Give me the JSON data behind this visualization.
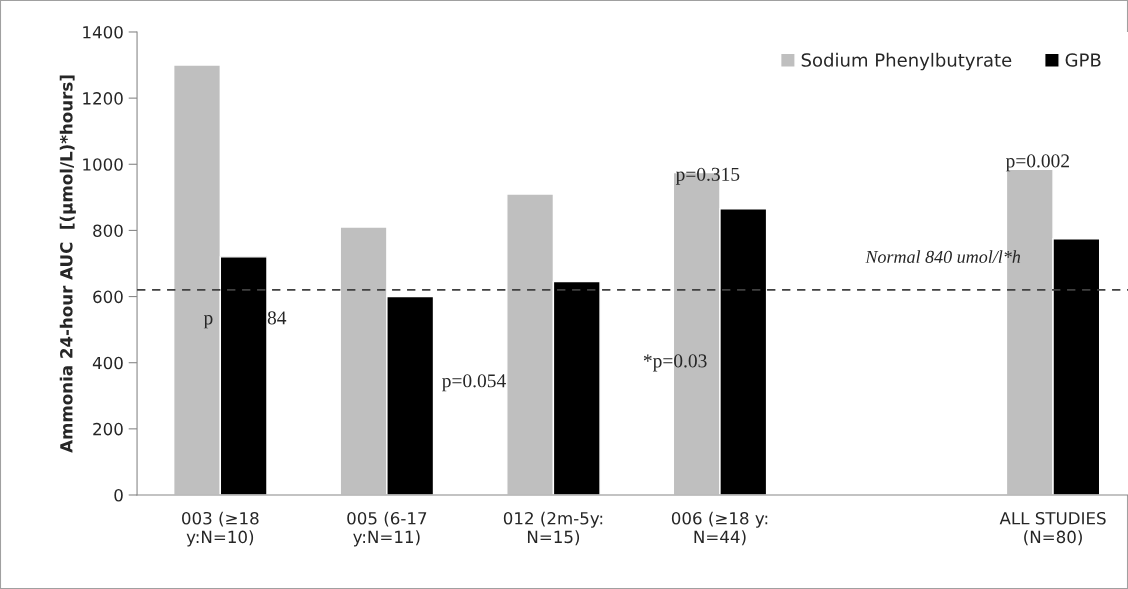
{
  "chart_data": {
    "type": "bar",
    "ylabel": "Ammonia 24-hour AUC  [(µmol/L)*hours]",
    "categories": [
      "003 (≥18\ny:N=10)",
      "005 (6-17\ny:N=11)",
      "012 (2m-5y:\nN=15)",
      "006 (≥18 y:\nN=44)",
      null,
      "ALL STUDIES\n(N=80)"
    ],
    "series": [
      {
        "name": "Sodium Phenylbutyrate",
        "color": "#bfbfbf",
        "values": [
          1300,
          810,
          910,
          975,
          null,
          985
        ]
      },
      {
        "name": "GPB",
        "color": "#000000",
        "values": [
          720,
          600,
          645,
          865,
          null,
          775
        ]
      }
    ],
    "ylim": [
      0,
      1400
    ],
    "yticks": [
      0,
      200,
      400,
      600,
      800,
      1000,
      1200,
      1400
    ],
    "ref_lines": [
      {
        "axis": "y",
        "value": 620,
        "label": "Normal 840 umol/l*h",
        "color": "#404040",
        "line_style": "dashed"
      }
    ],
    "annotations": [
      "p",
      "84",
      "p=0.054",
      "*p=0.03",
      "p=0.315",
      "p=0.002"
    ],
    "legend": "top right",
    "grid": false
  }
}
